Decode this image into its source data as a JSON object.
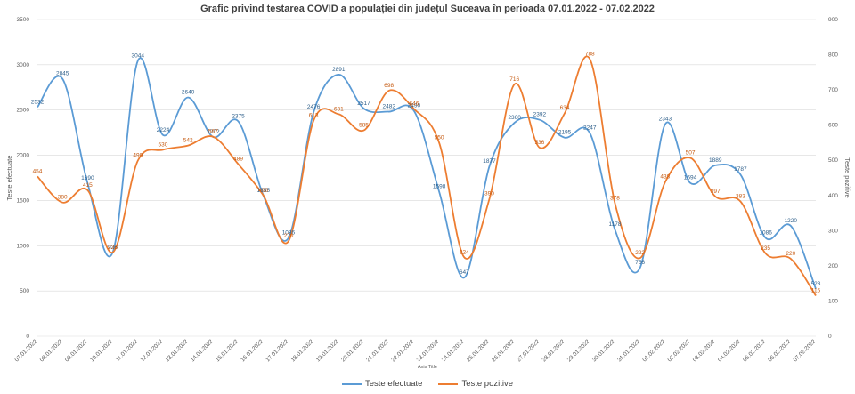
{
  "chart_data": {
    "type": "line",
    "title": "Grafic privind testarea COVID a populației din județul Suceava în perioada 07.01.2022  - 07.02.2022",
    "xlabel": "Axis Title",
    "ylabel": "Teste efectuate",
    "y2label": "Teste pozitive",
    "ylim": [
      0,
      3500
    ],
    "y2lim": [
      0,
      900
    ],
    "yticks": [
      "0",
      "500",
      "1000",
      "1500",
      "2000",
      "2500",
      "3000",
      "3500"
    ],
    "y2ticks": [
      "0",
      "100",
      "200",
      "300",
      "400",
      "500",
      "600",
      "700",
      "800",
      "900"
    ],
    "grid": true,
    "legend": "bottom",
    "categories": [
      "07.01.2022",
      "08.01.2022",
      "09.01.2022",
      "10.01.2022",
      "11.01.2022",
      "12.01.2022",
      "13.01.2022",
      "14.01.2022",
      "15.01.2022",
      "16.01.2022",
      "17.01.2022",
      "18.01.2022",
      "19.01.2022",
      "20.01.2022",
      "21.01.2022",
      "22.01.2022",
      "23.01.2022",
      "24.01.2022",
      "25.01.2022",
      "26.01.2022",
      "27.01.2022",
      "28.01.2022",
      "29.01.2022",
      "30.01.2022",
      "31.01.2022",
      "01.02.2022",
      "02.02.2022",
      "03.02.2022",
      "04.02.2022",
      "05.02.2022",
      "06.02.2022",
      "07.02.2022"
    ],
    "series": [
      {
        "name": "Teste efectuate",
        "axis": "left",
        "color": "#5b9bd5",
        "values": [
          2532,
          2845,
          1690,
          926,
          3044,
          2224,
          2640,
          2202,
          2375,
          1555,
          1086,
          2476,
          2891,
          2517,
          2482,
          2490,
          1598,
          647,
          1877,
          2360,
          2392,
          2195,
          2247,
          1178,
          756,
          2343,
          1694,
          1889,
          1787,
          1086,
          1220,
          523
        ]
      },
      {
        "name": "Teste pozitive",
        "axis": "right",
        "color": "#ed7d31",
        "values": [
          454,
          380,
          415,
          238,
          499,
          530,
          542,
          567,
          489,
          400,
          270,
          613,
          631,
          585,
          698,
          646,
          550,
          224,
          390,
          716,
          536,
          634,
          788,
          378,
          222,
          438,
          507,
          397,
          383,
          235,
          220,
          115
        ]
      }
    ]
  }
}
